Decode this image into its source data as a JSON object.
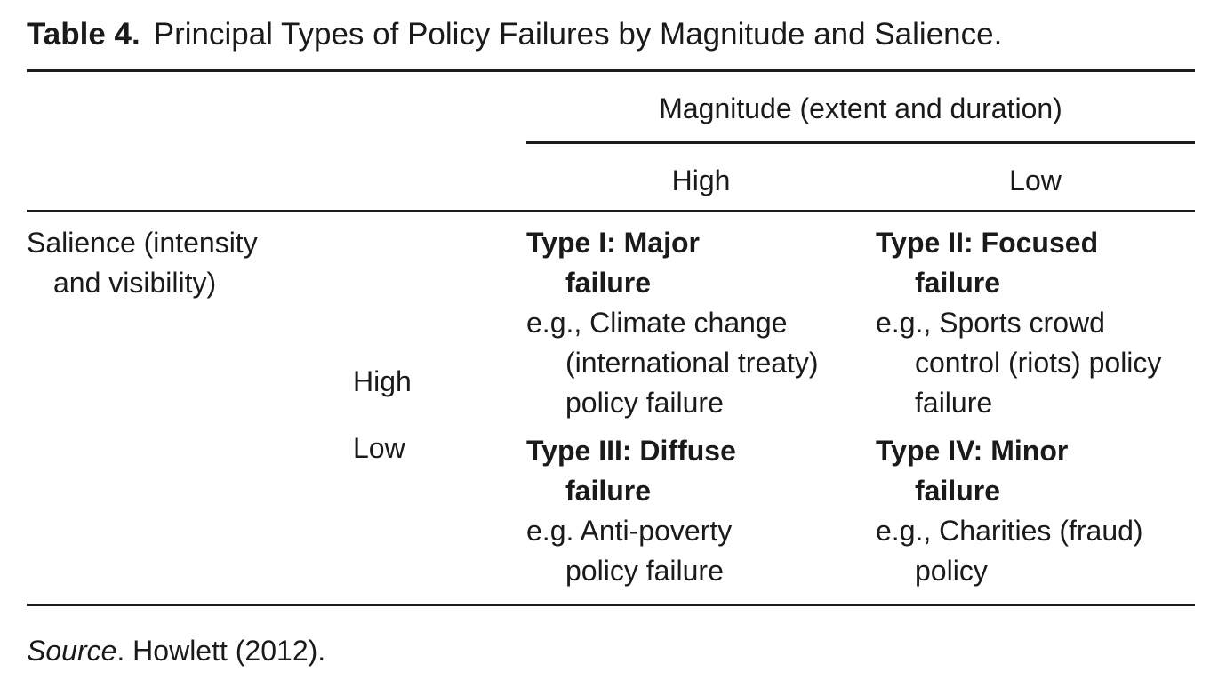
{
  "title": {
    "label": "Table 4.",
    "text": "Principal Types of Policy Failures by Magnitude and Salience."
  },
  "table": {
    "column_group_header": "Magnitude (extent and duration)",
    "column_headers": {
      "high": "High",
      "low": "Low"
    },
    "row_group_header": {
      "line1": "Salience (intensity",
      "line2": "and visibility)"
    },
    "row_headers": {
      "high": "High",
      "low": "Low"
    },
    "cells": {
      "type_i": {
        "title_line1": "Type I: Major",
        "title_line2": "failure",
        "example_line1": "e.g., Climate change",
        "example_line2": "(international treaty)",
        "example_line3": "policy failure"
      },
      "type_ii": {
        "title_line1": "Type II: Focused",
        "title_line2": "failure",
        "example_line1": "e.g., Sports crowd",
        "example_line2": "control (riots) policy",
        "example_line3": "failure"
      },
      "type_iii": {
        "title_line1": "Type III: Diffuse",
        "title_line2": "failure",
        "example_line1": "e.g. Anti-poverty",
        "example_line2": "policy failure"
      },
      "type_iv": {
        "title_line1": "Type IV: Minor",
        "title_line2": "failure",
        "example_line1": "e.g., Charities (fraud)",
        "example_line2": "policy"
      }
    }
  },
  "footer": {
    "source_label": "Source",
    "source_text": ". Howlett (2012)."
  },
  "colors": {
    "text": "#1a1a1a",
    "rule": "#1c1c1c",
    "background": "#ffffff"
  }
}
